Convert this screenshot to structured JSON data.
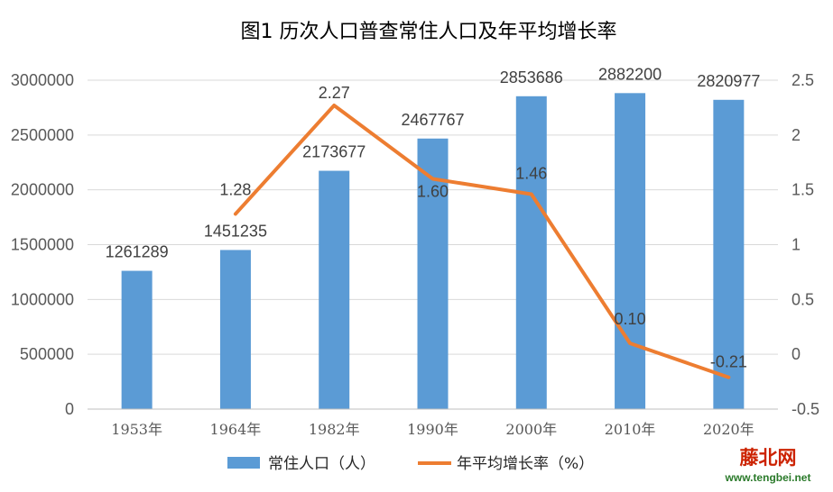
{
  "chart_data": {
    "type": "bar",
    "title": "图1    历次人口普查常住人口及年平均增长率",
    "categories": [
      "1953年",
      "1964年",
      "1982年",
      "1990年",
      "2000年",
      "2010年",
      "2020年"
    ],
    "series": [
      {
        "name": "常住人口（人）",
        "type": "bar",
        "axis": "left",
        "values": [
          1261289,
          1451235,
          2173677,
          2467767,
          2853686,
          2882200,
          2820977
        ],
        "labels": [
          "1261289",
          "1451235",
          "2173677",
          "2467767",
          "2853686",
          "2882200",
          "2820977"
        ],
        "color": "#5b9bd5"
      },
      {
        "name": "年平均增长率（%）",
        "type": "line",
        "axis": "right",
        "values": [
          null,
          1.28,
          2.27,
          1.6,
          1.46,
          0.1,
          -0.21
        ],
        "labels": [
          null,
          "1.28",
          "2.27",
          "1.60",
          "1.46",
          "0.10",
          "-0.21"
        ],
        "color": "#ed7d31"
      }
    ],
    "y_left": {
      "min": 0,
      "max": 3000000,
      "ticks": [
        "0",
        "500000",
        "1000000",
        "1500000",
        "2000000",
        "2500000",
        "3000000"
      ]
    },
    "y_right": {
      "min": -0.5,
      "max": 2.5,
      "ticks": [
        "-0.5",
        "0",
        "0.5",
        "1",
        "1.5",
        "2",
        "2.5"
      ]
    },
    "grid": true,
    "legend": "bottom"
  },
  "watermark": {
    "logo_text": "藤北网",
    "url": "www.tengbei.net"
  }
}
